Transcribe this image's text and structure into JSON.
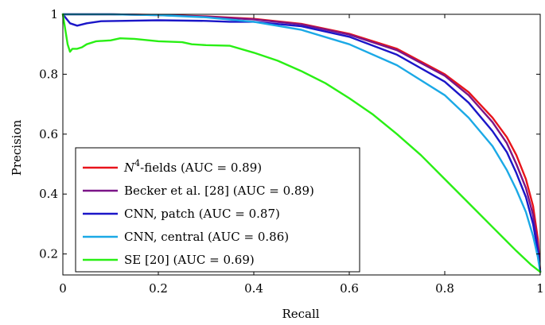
{
  "chart_data": {
    "type": "line",
    "xlabel": "Recall",
    "ylabel": "Precision",
    "xlim": [
      0,
      1
    ],
    "ylim": [
      0.13,
      1.0
    ],
    "xticks": [
      0,
      0.2,
      0.4,
      0.6,
      0.8,
      1
    ],
    "xtick_labels": [
      "0",
      "0.2",
      "0.4",
      "0.6",
      "0.8",
      "1"
    ],
    "yticks": [
      0.2,
      0.4,
      0.6,
      0.8,
      1
    ],
    "ytick_labels": [
      "0.2",
      "0.4",
      "0.6",
      "0.8",
      "1"
    ],
    "grid": false,
    "legend_position": "bottom-left",
    "series": [
      {
        "name": "N4-fields (AUC = 0.89)",
        "legend": {
          "base": "N",
          "sup": "4",
          "rest": "-fields (AUC = 0.89)"
        },
        "color": "#e8141b",
        "points": [
          [
            0,
            1
          ],
          [
            0.1,
            1
          ],
          [
            0.2,
            0.998
          ],
          [
            0.3,
            0.993
          ],
          [
            0.4,
            0.985
          ],
          [
            0.5,
            0.968
          ],
          [
            0.6,
            0.935
          ],
          [
            0.7,
            0.885
          ],
          [
            0.8,
            0.8
          ],
          [
            0.85,
            0.74
          ],
          [
            0.9,
            0.655
          ],
          [
            0.93,
            0.59
          ],
          [
            0.95,
            0.53
          ],
          [
            0.97,
            0.45
          ],
          [
            0.985,
            0.36
          ],
          [
            0.995,
            0.25
          ],
          [
            1,
            0.14
          ]
        ]
      },
      {
        "name": "Becker et al. [28] (AUC = 0.89)",
        "color": "#7b1487",
        "points": [
          [
            0,
            1
          ],
          [
            0.1,
            1
          ],
          [
            0.2,
            0.997
          ],
          [
            0.3,
            0.992
          ],
          [
            0.4,
            0.983
          ],
          [
            0.5,
            0.966
          ],
          [
            0.6,
            0.932
          ],
          [
            0.7,
            0.88
          ],
          [
            0.8,
            0.795
          ],
          [
            0.85,
            0.73
          ],
          [
            0.9,
            0.64
          ],
          [
            0.93,
            0.57
          ],
          [
            0.95,
            0.5
          ],
          [
            0.97,
            0.42
          ],
          [
            0.985,
            0.33
          ],
          [
            0.995,
            0.23
          ],
          [
            1,
            0.14
          ]
        ]
      },
      {
        "name": "CNN, patch (AUC = 0.87)",
        "color": "#1b16c8",
        "points": [
          [
            0,
            1
          ],
          [
            0.005,
            0.99
          ],
          [
            0.015,
            0.97
          ],
          [
            0.03,
            0.962
          ],
          [
            0.05,
            0.97
          ],
          [
            0.08,
            0.977
          ],
          [
            0.12,
            0.978
          ],
          [
            0.2,
            0.98
          ],
          [
            0.3,
            0.978
          ],
          [
            0.35,
            0.975
          ],
          [
            0.4,
            0.975
          ],
          [
            0.5,
            0.96
          ],
          [
            0.6,
            0.925
          ],
          [
            0.7,
            0.865
          ],
          [
            0.8,
            0.775
          ],
          [
            0.85,
            0.705
          ],
          [
            0.9,
            0.61
          ],
          [
            0.93,
            0.54
          ],
          [
            0.95,
            0.47
          ],
          [
            0.97,
            0.39
          ],
          [
            0.985,
            0.3
          ],
          [
            0.995,
            0.21
          ],
          [
            1,
            0.14
          ]
        ]
      },
      {
        "name": "CNN, central (AUC = 0.86)",
        "color": "#1ba9e6",
        "points": [
          [
            0,
            1
          ],
          [
            0.1,
            1
          ],
          [
            0.2,
            0.997
          ],
          [
            0.3,
            0.99
          ],
          [
            0.4,
            0.975
          ],
          [
            0.5,
            0.948
          ],
          [
            0.6,
            0.9
          ],
          [
            0.7,
            0.83
          ],
          [
            0.8,
            0.73
          ],
          [
            0.85,
            0.655
          ],
          [
            0.9,
            0.56
          ],
          [
            0.93,
            0.48
          ],
          [
            0.95,
            0.415
          ],
          [
            0.97,
            0.34
          ],
          [
            0.985,
            0.26
          ],
          [
            0.995,
            0.19
          ],
          [
            1,
            0.14
          ]
        ]
      },
      {
        "name": "SE [20] (AUC = 0.69)",
        "color": "#29ef14",
        "points": [
          [
            0,
            1
          ],
          [
            0.005,
            0.95
          ],
          [
            0.01,
            0.9
          ],
          [
            0.015,
            0.875
          ],
          [
            0.02,
            0.885
          ],
          [
            0.03,
            0.885
          ],
          [
            0.04,
            0.89
          ],
          [
            0.05,
            0.9
          ],
          [
            0.07,
            0.91
          ],
          [
            0.1,
            0.913
          ],
          [
            0.12,
            0.92
          ],
          [
            0.15,
            0.918
          ],
          [
            0.2,
            0.91
          ],
          [
            0.25,
            0.907
          ],
          [
            0.27,
            0.9
          ],
          [
            0.3,
            0.897
          ],
          [
            0.35,
            0.895
          ],
          [
            0.4,
            0.872
          ],
          [
            0.45,
            0.845
          ],
          [
            0.5,
            0.81
          ],
          [
            0.55,
            0.77
          ],
          [
            0.6,
            0.72
          ],
          [
            0.65,
            0.665
          ],
          [
            0.7,
            0.6
          ],
          [
            0.75,
            0.53
          ],
          [
            0.8,
            0.45
          ],
          [
            0.85,
            0.37
          ],
          [
            0.9,
            0.29
          ],
          [
            0.95,
            0.21
          ],
          [
            0.98,
            0.165
          ],
          [
            1,
            0.14
          ]
        ]
      }
    ]
  }
}
